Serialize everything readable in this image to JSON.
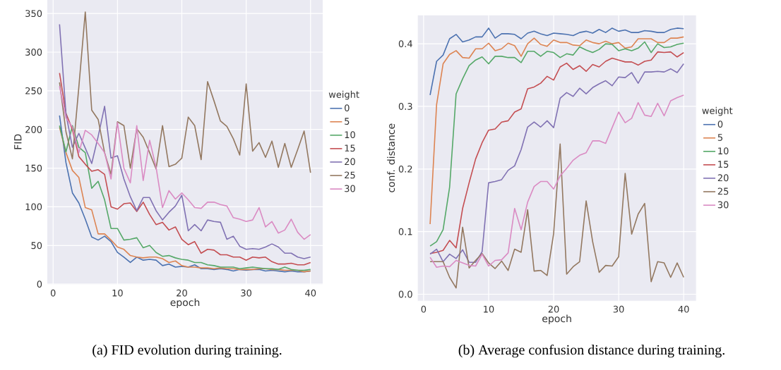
{
  "chart_data": [
    {
      "type": "line",
      "xlabel": "epoch",
      "ylabel": "FID",
      "legend_title": "weight",
      "legend": "right",
      "grid": true,
      "xlim": [
        -0.95,
        41.95
      ],
      "ylim": [
        -1,
        369
      ],
      "xticks": [
        0,
        10,
        20,
        30,
        40
      ],
      "yticks": [
        0,
        50,
        100,
        150,
        200,
        250,
        300,
        350
      ],
      "annotations": [
        "(a) FID evolution during training."
      ],
      "x": [
        1,
        2,
        3,
        4,
        5,
        6,
        7,
        8,
        9,
        10,
        11,
        12,
        13,
        14,
        15,
        16,
        17,
        18,
        19,
        20,
        21,
        22,
        23,
        24,
        25,
        26,
        27,
        28,
        29,
        30,
        31,
        32,
        33,
        34,
        35,
        36,
        37,
        38,
        39,
        40
      ],
      "series": [
        {
          "name": "0",
          "color": "#4c72b0",
          "values": [
            218,
            157,
            118,
            105,
            84,
            61,
            57,
            62,
            55,
            41,
            35,
            28,
            35,
            31,
            32,
            31,
            24,
            26,
            22,
            23,
            22,
            25,
            20,
            20,
            19,
            20,
            19,
            17,
            19,
            18,
            19,
            19,
            17,
            18,
            17,
            16,
            17,
            16,
            16,
            17
          ]
        },
        {
          "name": "5",
          "color": "#dd8452",
          "values": [
            203,
            170,
            147,
            138,
            99,
            96,
            65,
            65,
            57,
            48,
            45,
            37,
            35,
            34,
            35,
            35,
            33,
            28,
            30,
            24,
            22,
            22,
            21,
            21,
            20,
            21,
            20,
            20,
            19,
            19,
            19,
            20,
            20,
            19,
            19,
            18,
            18,
            18,
            16,
            17
          ]
        },
        {
          "name": "10",
          "color": "#55a868",
          "values": [
            205,
            171,
            205,
            177,
            170,
            124,
            133,
            109,
            72,
            72,
            57,
            58,
            60,
            47,
            50,
            41,
            36,
            37,
            34,
            32,
            31,
            28,
            28,
            25,
            24,
            22,
            22,
            22,
            20,
            21,
            22,
            21,
            20,
            20,
            19,
            22,
            19,
            18,
            18,
            19
          ]
        },
        {
          "name": "15",
          "color": "#c44e52",
          "values": [
            273,
            221,
            200,
            165,
            155,
            146,
            148,
            142,
            100,
            97,
            104,
            105,
            94,
            106,
            90,
            77,
            80,
            70,
            74,
            58,
            51,
            55,
            40,
            45,
            44,
            38,
            38,
            35,
            35,
            31,
            35,
            34,
            35,
            29,
            26,
            26,
            27,
            25,
            25,
            28
          ]
        },
        {
          "name": "20",
          "color": "#8172b3",
          "values": [
            336,
            220,
            177,
            195,
            176,
            156,
            191,
            230,
            163,
            166,
            136,
            113,
            95,
            112,
            112,
            95,
            83,
            93,
            101,
            115,
            69,
            77,
            69,
            83,
            81,
            80,
            58,
            62,
            49,
            45,
            46,
            45,
            48,
            52,
            48,
            40,
            40,
            35,
            33,
            35
          ]
        },
        {
          "name": "25",
          "color": "#937860",
          "values": [
            261,
            197,
            162,
            255,
            352,
            225,
            213,
            170,
            142,
            210,
            205,
            150,
            201,
            190,
            170,
            149,
            205,
            152,
            155,
            163,
            216,
            205,
            161,
            262,
            237,
            211,
            204,
            188,
            167,
            259,
            172,
            183,
            164,
            185,
            151,
            182,
            151,
            174,
            198,
            144
          ]
        },
        {
          "name": "30",
          "color": "#da8bc3",
          "values": [
            256,
            215,
            203,
            170,
            199,
            193,
            182,
            170,
            136,
            209,
            150,
            131,
            205,
            134,
            186,
            151,
            99,
            121,
            110,
            118,
            109,
            99,
            98,
            106,
            106,
            103,
            101,
            86,
            84,
            81,
            83,
            99,
            74,
            81,
            66,
            70,
            84,
            67,
            58,
            64
          ]
        }
      ]
    },
    {
      "type": "line",
      "xlabel": "epoch",
      "ylabel": "conf. distance",
      "legend_title": "weight",
      "legend": "right",
      "grid": true,
      "xlim": [
        -0.95,
        41.95
      ],
      "ylim": [
        -0.011,
        0.446
      ],
      "xticks": [
        0,
        10,
        20,
        30,
        40
      ],
      "yticks": [
        {
          "value": 0,
          "label": "0.0"
        },
        0.1,
        0.2,
        0.3,
        0.4
      ],
      "annotations": [
        "(b) Average confusion distance during training."
      ],
      "x": [
        1,
        2,
        3,
        4,
        5,
        6,
        7,
        8,
        9,
        10,
        11,
        12,
        13,
        14,
        15,
        16,
        17,
        18,
        19,
        20,
        21,
        22,
        23,
        24,
        25,
        26,
        27,
        28,
        29,
        30,
        31,
        32,
        33,
        34,
        35,
        36,
        37,
        38,
        39,
        40
      ],
      "series": [
        {
          "name": "0",
          "color": "#4c72b0",
          "values": [
            0.318,
            0.372,
            0.382,
            0.408,
            0.415,
            0.403,
            0.406,
            0.411,
            0.411,
            0.425,
            0.409,
            0.416,
            0.416,
            0.415,
            0.408,
            0.417,
            0.42,
            0.416,
            0.413,
            0.417,
            0.416,
            0.415,
            0.413,
            0.418,
            0.42,
            0.417,
            0.423,
            0.418,
            0.425,
            0.42,
            0.422,
            0.418,
            0.418,
            0.421,
            0.42,
            0.418,
            0.418,
            0.423,
            0.425,
            0.424
          ]
        },
        {
          "name": "5",
          "color": "#dd8452",
          "values": [
            0.112,
            0.303,
            0.368,
            0.383,
            0.389,
            0.378,
            0.377,
            0.392,
            0.392,
            0.401,
            0.389,
            0.392,
            0.401,
            0.397,
            0.38,
            0.4,
            0.409,
            0.399,
            0.396,
            0.406,
            0.402,
            0.402,
            0.398,
            0.397,
            0.406,
            0.402,
            0.4,
            0.404,
            0.4,
            0.402,
            0.393,
            0.395,
            0.408,
            0.408,
            0.408,
            0.402,
            0.402,
            0.409,
            0.409,
            0.411
          ]
        },
        {
          "name": "10",
          "color": "#55a868",
          "values": [
            0.077,
            0.084,
            0.103,
            0.171,
            0.32,
            0.344,
            0.365,
            0.374,
            0.379,
            0.368,
            0.38,
            0.38,
            0.378,
            0.378,
            0.37,
            0.388,
            0.388,
            0.38,
            0.388,
            0.386,
            0.378,
            0.384,
            0.382,
            0.395,
            0.39,
            0.386,
            0.391,
            0.4,
            0.399,
            0.389,
            0.392,
            0.389,
            0.393,
            0.403,
            0.386,
            0.4,
            0.394,
            0.395,
            0.399,
            0.401
          ]
        },
        {
          "name": "15",
          "color": "#c44e52",
          "values": [
            0.065,
            0.067,
            0.07,
            0.086,
            0.074,
            0.137,
            0.178,
            0.216,
            0.242,
            0.262,
            0.264,
            0.275,
            0.277,
            0.291,
            0.296,
            0.328,
            0.331,
            0.337,
            0.348,
            0.342,
            0.363,
            0.369,
            0.359,
            0.365,
            0.356,
            0.367,
            0.363,
            0.372,
            0.377,
            0.374,
            0.371,
            0.371,
            0.366,
            0.372,
            0.374,
            0.387,
            0.386,
            0.387,
            0.379,
            0.386
          ]
        },
        {
          "name": "20",
          "color": "#8172b3",
          "values": [
            0.064,
            0.072,
            0.052,
            0.064,
            0.057,
            0.071,
            0.051,
            0.051,
            0.068,
            0.178,
            0.18,
            0.183,
            0.198,
            0.205,
            0.231,
            0.267,
            0.275,
            0.267,
            0.277,
            0.266,
            0.313,
            0.322,
            0.316,
            0.329,
            0.32,
            0.33,
            0.336,
            0.341,
            0.333,
            0.347,
            0.346,
            0.354,
            0.337,
            0.355,
            0.355,
            0.356,
            0.355,
            0.36,
            0.354,
            0.368
          ]
        },
        {
          "name": "25",
          "color": "#937860",
          "values": [
            0.052,
            0.052,
            0.052,
            0.027,
            0.01,
            0.107,
            0.042,
            0.054,
            0.065,
            0.05,
            0.041,
            0.053,
            0.038,
            0.072,
            0.067,
            0.135,
            0.037,
            0.038,
            0.03,
            0.097,
            0.24,
            0.032,
            0.044,
            0.052,
            0.149,
            0.084,
            0.035,
            0.046,
            0.045,
            0.06,
            0.193,
            0.096,
            0.128,
            0.145,
            0.02,
            0.052,
            0.05,
            0.027,
            0.05,
            0.027
          ]
        },
        {
          "name": "30",
          "color": "#da8bc3",
          "values": [
            0.059,
            0.043,
            0.045,
            0.044,
            0.054,
            0.05,
            0.046,
            0.045,
            0.064,
            0.045,
            0.054,
            0.055,
            0.066,
            0.137,
            0.103,
            0.147,
            0.172,
            0.18,
            0.18,
            0.168,
            0.189,
            0.201,
            0.214,
            0.222,
            0.226,
            0.245,
            0.245,
            0.241,
            0.266,
            0.291,
            0.274,
            0.281,
            0.306,
            0.286,
            0.284,
            0.305,
            0.285,
            0.309,
            0.314,
            0.318
          ]
        }
      ]
    }
  ]
}
